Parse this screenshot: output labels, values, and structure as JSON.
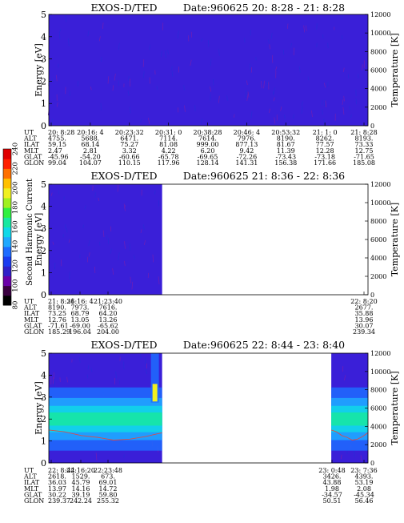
{
  "colorbar": {
    "label": "Second Harmonic Current",
    "ticks": [
      "80",
      "100",
      "120",
      "140",
      "160",
      "180",
      "200",
      "220",
      "240"
    ],
    "colors": [
      "#000000",
      "#3a0040",
      "#6a00a8",
      "#3020c8",
      "#1a3cf0",
      "#1e6cff",
      "#20a8ff",
      "#10d8e8",
      "#18e8a0",
      "#30f040",
      "#a0f020",
      "#f0f020",
      "#ffc000",
      "#ff7000",
      "#ff2000",
      "#e00000"
    ]
  },
  "chart_data": [
    {
      "type": "heatmap",
      "title": "EXOS-D/TED",
      "date_range": "Date:960625  20: 8:28 - 21: 8:28",
      "ylabel": "Energy [eV]",
      "ylabel_right": "Temperature [K]",
      "ylim": [
        0,
        5
      ],
      "yticks": [
        "0",
        "1",
        "2",
        "3",
        "4",
        "5"
      ],
      "ylim_right": [
        0,
        12000
      ],
      "yticks_right": [
        "0",
        "2000",
        "4000",
        "6000",
        "8000",
        "10000",
        "12000"
      ],
      "data_coverage": [
        [
          0,
          1
        ]
      ],
      "band": null,
      "table": {
        "row_labels": [
          "UT",
          "ALT",
          "ILAT",
          "MLT",
          "GLAT",
          "GLON"
        ],
        "columns": [
          [
            "20: 8:28",
            "4755.",
            "59.15",
            "2.47",
            "-45.96",
            "99.04"
          ],
          [
            "20:16: 4",
            "5688.",
            "68.14",
            "2.81",
            "-54.20",
            "104.07"
          ],
          [
            "20:23:32",
            "6471.",
            "75.27",
            "3.32",
            "-60.66",
            "110.15"
          ],
          [
            "20:31: 0",
            "7114.",
            "81.08",
            "4.22",
            "-65.78",
            "117.96"
          ],
          [
            "20:38:28",
            "7614.",
            "999.00",
            "6.20",
            "-69.65",
            "128.14"
          ],
          [
            "20:46: 4",
            "7976.",
            "877.13",
            "9.42",
            "-72.26",
            "141.31"
          ],
          [
            "20:53:32",
            "8190.",
            "81.67",
            "11.39",
            "-73.43",
            "156.38"
          ],
          [
            "21: 1: 0",
            "8262.",
            "77.57",
            "12.28",
            "-73.18",
            "171.66"
          ],
          [
            "21: 8:28",
            "8193.",
            "73.33",
            "12.75",
            "-71.65",
            "185.08"
          ]
        ]
      }
    },
    {
      "type": "heatmap",
      "title": "EXOS-D/TED",
      "date_range": "Date:960625  21: 8:36 - 22: 8:36",
      "ylabel": "Energy [eV]",
      "ylabel_right": "Temperature [K]",
      "ylim": [
        0,
        5
      ],
      "yticks": [
        "0",
        "1",
        "2",
        "3",
        "4",
        "5"
      ],
      "ylim_right": [
        0,
        12000
      ],
      "yticks_right": [
        "0",
        "2000",
        "4000",
        "6000",
        "8000",
        "10000",
        "12000"
      ],
      "data_coverage": [
        [
          0,
          0.355
        ]
      ],
      "band": null,
      "table": {
        "row_labels": [
          "UT",
          "ALT",
          "ILAT",
          "MLT",
          "GLAT",
          "GLON"
        ],
        "columns": [
          [
            "21: 8:36",
            "8190.",
            "73.25",
            "12.76",
            "-71.61",
            "185.29"
          ],
          [
            "21:16: 4",
            "7973.",
            "68.79",
            "13.05",
            "-69.00",
            "196.04"
          ],
          [
            "21:23:40",
            "7616.",
            "64.20",
            "13.26",
            "-65.62",
            "204.00"
          ],
          [
            "22: 8:20",
            "2677.",
            "35.88",
            "13.96",
            "30.07",
            "239.34"
          ]
        ]
      }
    },
    {
      "type": "heatmap",
      "title": "EXOS-D/TED",
      "date_range": "Date:960625  22: 8:44 - 23: 8:40",
      "ylabel": "Energy [eV]",
      "ylabel_right": "Temperature [K]",
      "ylim": [
        0,
        5
      ],
      "yticks": [
        "0",
        "1",
        "2",
        "3",
        "4",
        "5"
      ],
      "ylim_right": [
        0,
        12000
      ],
      "yticks_right": [
        "0",
        "2000",
        "4000",
        "6000",
        "8000",
        "10000",
        "12000"
      ],
      "data_coverage": [
        [
          0,
          0.355
        ],
        [
          0.885,
          1
        ]
      ],
      "band": {
        "center_ev": 2.0,
        "width_ev": 0.9,
        "temperature_k": [
          3600,
          3400,
          3000,
          2800,
          2500,
          2600,
          2900,
          3300
        ]
      },
      "table": {
        "row_labels": [
          "UT",
          "ALT",
          "ILAT",
          "MLT",
          "GLAT",
          "GLON"
        ],
        "columns": [
          [
            "22: 8:44",
            "2618.",
            "36.03",
            "13.97",
            "30.22",
            "239.37"
          ],
          [
            "22:16:20",
            "1529.",
            "45.79",
            "14.16",
            "39.19",
            "242.24"
          ],
          [
            "22:23:48",
            "673.",
            "69.01",
            "14.72",
            "59.80",
            "255.32"
          ],
          [
            "23: 0:48",
            "3426.",
            "43.88",
            "1.98",
            "-34.57",
            "50.51"
          ],
          [
            "23: 7:36",
            "4393.",
            "53.19",
            "2.08",
            "-45.34",
            "56.46"
          ]
        ]
      }
    }
  ]
}
